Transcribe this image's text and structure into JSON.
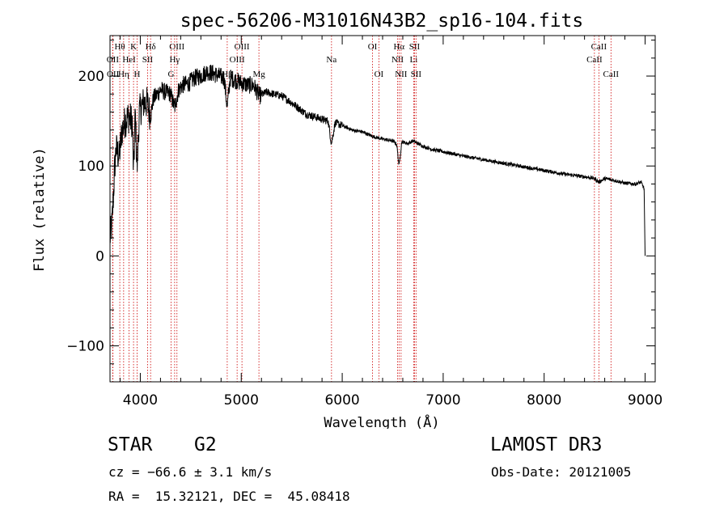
{
  "chart_data": {
    "type": "line",
    "title": "spec-56206-M31016N43B2_sp16-104.fits",
    "xlabel": "Wavelength (Å)",
    "ylabel": "Flux (relative)",
    "xlim": [
      3700,
      9100
    ],
    "ylim": [
      -140,
      245
    ],
    "xticks": [
      4000,
      5000,
      6000,
      7000,
      8000,
      9000
    ],
    "yticks": [
      -100,
      0,
      100,
      200
    ],
    "grid": false,
    "colors": {
      "spectrum": "#000000",
      "lines": "#cc0000",
      "axes": "#000000"
    },
    "spectrum_anchors": {
      "wavelength": [
        3700,
        3720,
        3745,
        3760,
        3790,
        3820,
        3850,
        3880,
        3920,
        3933,
        3950,
        3968,
        3990,
        4030,
        4070,
        4101,
        4130,
        4170,
        4200,
        4250,
        4300,
        4340,
        4380,
        4420,
        4480,
        4540,
        4600,
        4660,
        4720,
        4780,
        4830,
        4861,
        4890,
        4950,
        5010,
        5060,
        5120,
        5180,
        5250,
        5320,
        5400,
        5480,
        5560,
        5640,
        5720,
        5800,
        5860,
        5893,
        5930,
        6000,
        6100,
        6200,
        6300,
        6400,
        6500,
        6540,
        6563,
        6590,
        6650,
        6700,
        6800,
        6900,
        7000,
        7200,
        7400,
        7600,
        7800,
        8000,
        8200,
        8400,
        8500,
        8542,
        8600,
        8700,
        8800,
        8900,
        8960,
        8990,
        9000
      ],
      "flux": [
        20,
        35,
        95,
        120,
        110,
        140,
        150,
        155,
        150,
        90,
        160,
        95,
        160,
        170,
        170,
        155,
        175,
        180,
        185,
        182,
        180,
        165,
        185,
        190,
        192,
        198,
        200,
        205,
        203,
        200,
        198,
        165,
        198,
        195,
        192,
        190,
        190,
        178,
        182,
        180,
        178,
        172,
        165,
        158,
        155,
        152,
        150,
        125,
        148,
        145,
        140,
        138,
        133,
        130,
        128,
        124,
        100,
        127,
        125,
        128,
        122,
        118,
        116,
        111,
        107,
        103,
        99,
        95,
        91,
        88,
        86,
        82,
        86,
        84,
        81,
        80,
        82,
        75,
        0
      ]
    },
    "lines": [
      {
        "label": "Hθ",
        "wavelength": 3797,
        "row": 1
      },
      {
        "label": "OII",
        "wavelength": 3727,
        "row": 2
      },
      {
        "label": "OII",
        "wavelength": 3729,
        "row": 3
      },
      {
        "label": "Hη",
        "wavelength": 3835,
        "row": 3
      },
      {
        "label": "HeI",
        "wavelength": 3889,
        "row": 2
      },
      {
        "label": "K",
        "wavelength": 3933,
        "row": 1
      },
      {
        "label": "H",
        "wavelength": 3968,
        "row": 3
      },
      {
        "label": "SII",
        "wavelength": 4072,
        "row": 2
      },
      {
        "label": "Hδ",
        "wavelength": 4102,
        "row": 1
      },
      {
        "label": "G",
        "wavelength": 4305,
        "row": 3
      },
      {
        "label": "OIII",
        "wavelength": 4363,
        "row": 1
      },
      {
        "label": "Hγ",
        "wavelength": 4340,
        "row": 2
      },
      {
        "label": "Hβ",
        "wavelength": 4861,
        "row": 3
      },
      {
        "label": "OIII",
        "wavelength": 4959,
        "row": 2
      },
      {
        "label": "OIII",
        "wavelength": 5007,
        "row": 1
      },
      {
        "label": "Mg",
        "wavelength": 5175,
        "row": 3
      },
      {
        "label": "Na",
        "wavelength": 5894,
        "row": 2
      },
      {
        "label": "OI",
        "wavelength": 6300,
        "row": 1
      },
      {
        "label": "OI",
        "wavelength": 6363,
        "row": 3
      },
      {
        "label": "NII",
        "wavelength": 6548,
        "row": 2
      },
      {
        "label": "Hα",
        "wavelength": 6563,
        "row": 1
      },
      {
        "label": "NII",
        "wavelength": 6583,
        "row": 3
      },
      {
        "label": "SII",
        "wavelength": 6716,
        "row": 1
      },
      {
        "label": "Li",
        "wavelength": 6708,
        "row": 2
      },
      {
        "label": "SII",
        "wavelength": 6731,
        "row": 3
      },
      {
        "label": "CaII",
        "wavelength": 8498,
        "row": 2
      },
      {
        "label": "CaII",
        "wavelength": 8542,
        "row": 1
      },
      {
        "label": "CaII",
        "wavelength": 8662,
        "row": 3
      }
    ]
  },
  "info": {
    "obj_class": "STAR",
    "obj_subclass": "G2",
    "survey": "LAMOST DR3",
    "cz": "cz = −66.6 ± 3.1 km/s",
    "obs_date": "Obs-Date: 20121005",
    "radec": "RA =  15.32121, DEC =  45.08418"
  }
}
